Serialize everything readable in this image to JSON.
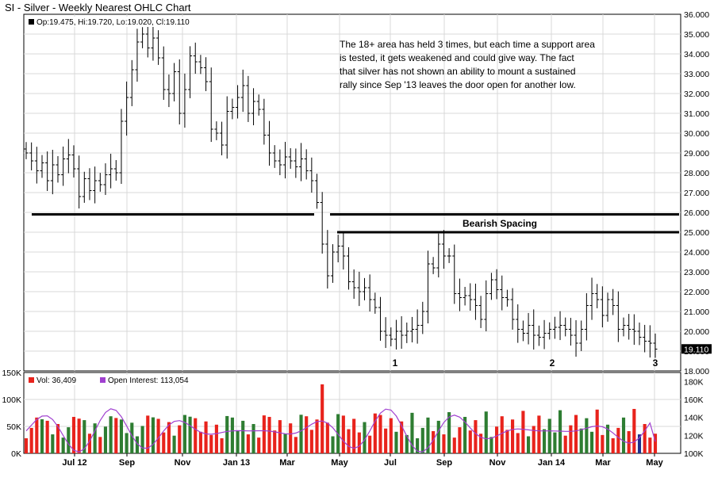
{
  "title": "SI - Silver - Weekly Nearest OHLC Chart",
  "legend_main": {
    "open_label": "Op:19.475",
    "high_label": "Hi:19.720",
    "low_label": "Lo:19.020",
    "close_label": "Cl:19.110"
  },
  "legend_volume": {
    "vol_label": "Vol: 36,409",
    "oi_label": "Open Interest: 113,054"
  },
  "annotations": {
    "commentary": [
      "The 18+ area has held 3 times, but each time a support area",
      "is tested, it gets weakened and could give way.  The fact",
      "that silver has not shown an ability to mount a sustained",
      "rally since Sep '13 leaves the door open for another low."
    ],
    "bearish_spacing": "Bearish Spacing",
    "low_markers": [
      "1",
      "2",
      "3"
    ]
  },
  "last_price_label": "19.110",
  "colors": {
    "up_volume": "#2e7d32",
    "down_volume": "#e8231c",
    "highlight_volume": "#1f2f8c",
    "open_interest": "#a040d0",
    "price_bar": "#000000",
    "grid": "#d9d9d9",
    "last_price_box": "#000000"
  },
  "chart_data": [
    {
      "type": "ohlc",
      "title": "SI - Silver - Weekly Nearest OHLC Chart",
      "ylim": [
        18,
        36
      ],
      "y_ticks": [
        "18.000",
        "19.000",
        "20.000",
        "21.000",
        "22.000",
        "23.000",
        "24.000",
        "25.000",
        "26.000",
        "27.000",
        "28.000",
        "29.000",
        "30.000",
        "31.000",
        "32.000",
        "33.000",
        "34.000",
        "35.000",
        "36.000"
      ],
      "x_ticks": [
        "Jul 12",
        "Sep",
        "Nov",
        "Jan 13",
        "Mar",
        "May",
        "Jul",
        "Sep",
        "Nov",
        "Jan 14",
        "Mar",
        "May"
      ],
      "horizontal_lines": [
        {
          "y": 25.9,
          "label": "support"
        },
        {
          "y": 25.9,
          "label": "support-right"
        },
        {
          "y": 25.0,
          "label": "Bearish Spacing"
        }
      ],
      "closes": [
        29.0,
        28.6,
        28.1,
        28.5,
        27.6,
        28.4,
        27.9,
        28.7,
        28.9,
        28.2,
        26.8,
        27.7,
        27.1,
        27.6,
        27.4,
        27.9,
        28.2,
        28.0,
        30.6,
        31.8,
        33.2,
        34.6,
        35.0,
        34.3,
        34.8,
        33.8,
        32.2,
        32.0,
        33.1,
        31.0,
        32.2,
        33.9,
        33.6,
        33.3,
        32.6,
        30.2,
        30.0,
        29.4,
        31.1,
        31.3,
        31.8,
        32.4,
        31.0,
        31.6,
        31.2,
        29.9,
        29.0,
        28.6,
        28.4,
        28.8,
        28.6,
        28.3,
        28.7,
        28.1,
        27.6,
        26.5,
        24.4,
        22.8,
        24.0,
        24.3,
        23.8,
        22.5,
        22.2,
        22.0,
        22.2,
        21.6,
        21.2,
        20.0,
        19.8,
        19.6,
        20.0,
        19.8,
        20.0,
        20.1,
        20.3,
        21.0,
        23.4,
        23.2,
        24.4,
        23.8,
        23.8,
        21.9,
        21.7,
        21.8,
        21.6,
        21.3,
        20.6,
        21.9,
        22.6,
        22.1,
        21.7,
        21.6,
        20.6,
        20.1,
        19.9,
        20.3,
        19.8,
        19.7,
        19.9,
        20.1,
        20.2,
        20.3,
        20.1,
        19.8,
        19.4,
        20.1,
        21.3,
        21.9,
        21.6,
        20.8,
        21.6,
        21.3,
        20.1,
        20.3,
        20.1,
        20.0,
        19.7,
        19.5,
        19.4,
        19.1
      ],
      "volume_panel": {
        "ylim_volume": [
          0,
          150000
        ],
        "y_ticks_volume": [
          "0K",
          "50K",
          "100K",
          "150K"
        ],
        "y_ticks_open_interest": [
          "100K",
          "120K",
          "140K",
          "160K",
          "180K"
        ],
        "ylim_open_interest": [
          100000,
          190000
        ],
        "last_volume": 36409,
        "last_open_interest": 113054
      }
    }
  ]
}
